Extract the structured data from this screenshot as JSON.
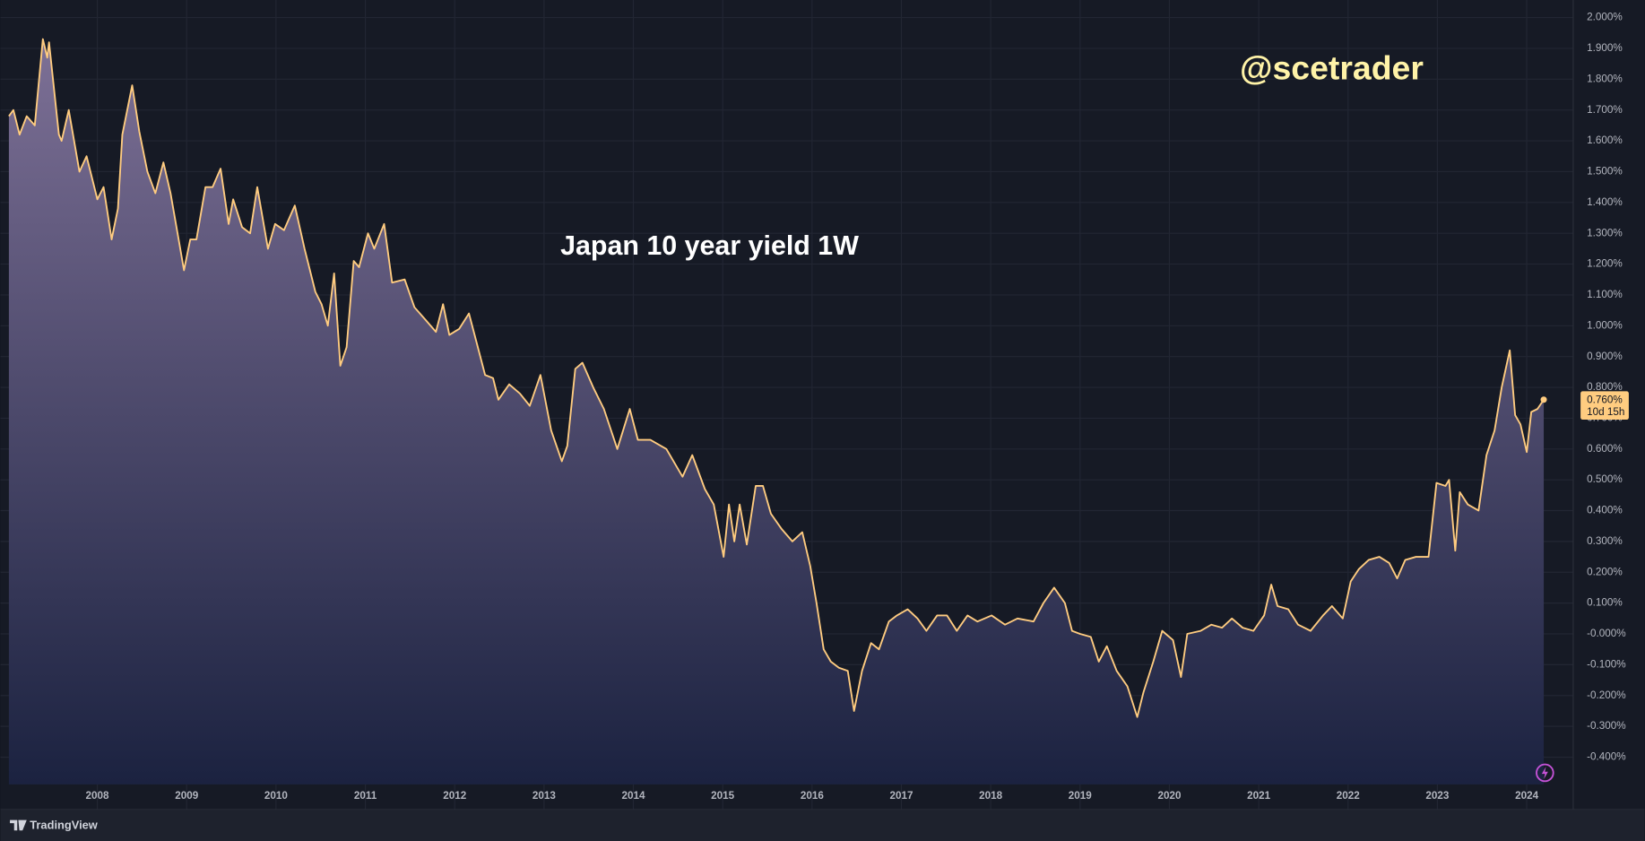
{
  "chart_data": {
    "type": "area",
    "title": "Japan 10 year yield 1W",
    "annotation": "@scetrader",
    "footer": "TradingView",
    "color": "#ffcc80",
    "fill_top": "#7d7096",
    "fill_bottom": "#1b2240",
    "grid": true,
    "price_label": {
      "value": 0.76,
      "label": "0.760%"
    },
    "countdown": "10d 15h",
    "xlim": [
      2007.01,
      2024.52
    ],
    "xticks": [
      2008,
      2009,
      2010,
      2011,
      2012,
      2013,
      2014,
      2015,
      2016,
      2017,
      2018,
      2019,
      2020,
      2021,
      2022,
      2023,
      2024
    ],
    "ylim": [
      -0.57,
      2.04
    ],
    "yticks": [
      {
        "value": -0.4,
        "label": "-0.400%"
      },
      {
        "value": -0.3,
        "label": "-0.300%"
      },
      {
        "value": -0.2,
        "label": "-0.200%"
      },
      {
        "value": -0.1,
        "label": "-0.100%"
      },
      {
        "value": 0,
        "label": "-0.000%"
      },
      {
        "value": 0.1,
        "label": "0.100%"
      },
      {
        "value": 0.2,
        "label": "0.200%"
      },
      {
        "value": 0.3,
        "label": "0.300%"
      },
      {
        "value": 0.4,
        "label": "0.400%"
      },
      {
        "value": 0.5,
        "label": "0.500%"
      },
      {
        "value": 0.6,
        "label": "0.600%"
      },
      {
        "value": 0.7,
        "label": "0.700%"
      },
      {
        "value": 0.8,
        "label": "0.800%"
      },
      {
        "value": 0.9,
        "label": "0.900%"
      },
      {
        "value": 1,
        "label": "1.000%"
      },
      {
        "value": 1.1,
        "label": "1.100%"
      },
      {
        "value": 1.2,
        "label": "1.200%"
      },
      {
        "value": 1.3,
        "label": "1.300%"
      },
      {
        "value": 1.4,
        "label": "1.400%"
      },
      {
        "value": 1.5,
        "label": "1.500%"
      },
      {
        "value": 1.6,
        "label": "1.600%"
      },
      {
        "value": 1.7,
        "label": "1.700%"
      },
      {
        "value": 1.8,
        "label": "1.800%"
      },
      {
        "value": 1.9,
        "label": "1.900%"
      },
      {
        "value": 2,
        "label": "2.000%"
      }
    ],
    "x": [
      2007.01,
      2007.06,
      2007.13,
      2007.21,
      2007.3,
      2007.39,
      2007.44,
      2007.46,
      2007.57,
      2007.6,
      2007.68,
      2007.8,
      2007.88,
      2008.0,
      2008.07,
      2008.16,
      2008.23,
      2008.28,
      2008.39,
      2008.47,
      2008.56,
      2008.65,
      2008.74,
      2008.82,
      2008.91,
      2008.97,
      2009.04,
      2009.11,
      2009.21,
      2009.29,
      2009.38,
      2009.47,
      2009.52,
      2009.62,
      2009.71,
      2009.79,
      2009.91,
      2009.99,
      2010.09,
      2010.21,
      2010.32,
      2010.44,
      2010.51,
      2010.58,
      2010.65,
      2010.72,
      2010.79,
      2010.87,
      2010.93,
      2011.03,
      2011.1,
      2011.21,
      2011.3,
      2011.44,
      2011.55,
      2011.67,
      2011.79,
      2011.87,
      2011.94,
      2012.05,
      2012.16,
      2012.26,
      2012.34,
      2012.43,
      2012.49,
      2012.61,
      2012.73,
      2012.84,
      2012.96,
      2013.08,
      2013.2,
      2013.26,
      2013.35,
      2013.43,
      2013.55,
      2013.67,
      2013.82,
      2013.96,
      2014.05,
      2014.19,
      2014.37,
      2014.55,
      2014.66,
      2014.8,
      2014.9,
      2015.01,
      2015.07,
      2015.13,
      2015.19,
      2015.27,
      2015.37,
      2015.45,
      2015.54,
      2015.66,
      2015.78,
      2015.89,
      2015.98,
      2016.05,
      2016.13,
      2016.21,
      2016.3,
      2016.4,
      2016.47,
      2016.56,
      2016.66,
      2016.75,
      2016.86,
      2016.95,
      2017.07,
      2017.18,
      2017.28,
      2017.4,
      2017.51,
      2017.62,
      2017.74,
      2017.85,
      2018.01,
      2018.16,
      2018.3,
      2018.48,
      2018.59,
      2018.71,
      2018.83,
      2018.91,
      2019.0,
      2019.12,
      2019.21,
      2019.3,
      2019.41,
      2019.53,
      2019.64,
      2019.71,
      2019.82,
      2019.92,
      2020.04,
      2020.13,
      2020.2,
      2020.35,
      2020.47,
      2020.59,
      2020.7,
      2020.82,
      2020.94,
      2021.06,
      2021.14,
      2021.21,
      2021.33,
      2021.44,
      2021.58,
      2021.72,
      2021.82,
      2021.94,
      2022.03,
      2022.12,
      2022.23,
      2022.35,
      2022.46,
      2022.55,
      2022.64,
      2022.76,
      2022.9,
      2022.99,
      2023.09,
      2023.13,
      2023.2,
      2023.25,
      2023.34,
      2023.46,
      2023.55,
      2023.64,
      2023.72,
      2023.81,
      2023.87,
      2023.93,
      2024.0,
      2024.05,
      2024.12,
      2024.19
    ],
    "values": [
      1.68,
      1.7,
      1.62,
      1.68,
      1.65,
      1.93,
      1.87,
      1.92,
      1.62,
      1.6,
      1.7,
      1.5,
      1.55,
      1.41,
      1.45,
      1.28,
      1.38,
      1.62,
      1.78,
      1.63,
      1.5,
      1.43,
      1.53,
      1.43,
      1.28,
      1.18,
      1.28,
      1.28,
      1.45,
      1.45,
      1.51,
      1.33,
      1.41,
      1.32,
      1.3,
      1.45,
      1.25,
      1.33,
      1.31,
      1.39,
      1.25,
      1.11,
      1.07,
      1.0,
      1.17,
      0.87,
      0.93,
      1.21,
      1.19,
      1.3,
      1.25,
      1.33,
      1.14,
      1.15,
      1.06,
      1.02,
      0.98,
      1.07,
      0.97,
      0.99,
      1.04,
      0.93,
      0.84,
      0.83,
      0.76,
      0.81,
      0.78,
      0.74,
      0.84,
      0.66,
      0.56,
      0.61,
      0.86,
      0.88,
      0.8,
      0.73,
      0.6,
      0.73,
      0.63,
      0.63,
      0.6,
      0.51,
      0.58,
      0.47,
      0.42,
      0.25,
      0.42,
      0.3,
      0.42,
      0.29,
      0.48,
      0.48,
      0.39,
      0.34,
      0.3,
      0.33,
      0.22,
      0.1,
      -0.05,
      -0.09,
      -0.11,
      -0.12,
      -0.25,
      -0.12,
      -0.03,
      -0.05,
      0.04,
      0.06,
      0.08,
      0.05,
      0.01,
      0.06,
      0.06,
      0.01,
      0.06,
      0.04,
      0.06,
      0.03,
      0.05,
      0.04,
      0.1,
      0.15,
      0.1,
      0.01,
      0.0,
      -0.01,
      -0.09,
      -0.04,
      -0.12,
      -0.17,
      -0.27,
      -0.19,
      -0.09,
      0.01,
      -0.02,
      -0.14,
      0.0,
      0.01,
      0.03,
      0.02,
      0.05,
      0.02,
      0.01,
      0.06,
      0.16,
      0.09,
      0.08,
      0.03,
      0.01,
      0.06,
      0.09,
      0.05,
      0.17,
      0.21,
      0.24,
      0.25,
      0.23,
      0.18,
      0.24,
      0.25,
      0.25,
      0.49,
      0.48,
      0.5,
      0.27,
      0.46,
      0.42,
      0.4,
      0.58,
      0.66,
      0.8,
      0.92,
      0.71,
      0.68,
      0.59,
      0.72,
      0.73,
      0.76
    ]
  }
}
